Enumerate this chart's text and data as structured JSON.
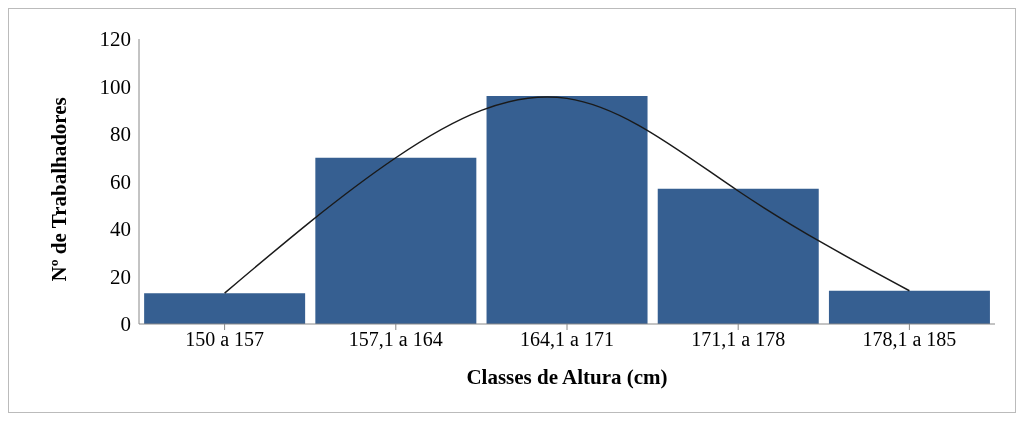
{
  "chart_data": {
    "type": "bar",
    "xlabel": "Classes de Altura (cm)",
    "ylabel": "Nº de Trabalhadores",
    "categories": [
      "150 a 157",
      "157,1 a 164",
      "164,1 a 171",
      "171,1 a 178",
      "178,1 a 185"
    ],
    "series": [
      {
        "color": "#365f91",
        "values": [
          13,
          70,
          96,
          57,
          14
        ]
      },
      {
        "type": "line",
        "color": "#1a1a1a",
        "values": [
          13,
          70,
          95,
          56,
          14
        ]
      }
    ],
    "ylim": [
      0,
      120
    ],
    "yticks": [
      0,
      20,
      40,
      60,
      80,
      100,
      120
    ],
    "marker": "none",
    "line_style": "solid"
  }
}
